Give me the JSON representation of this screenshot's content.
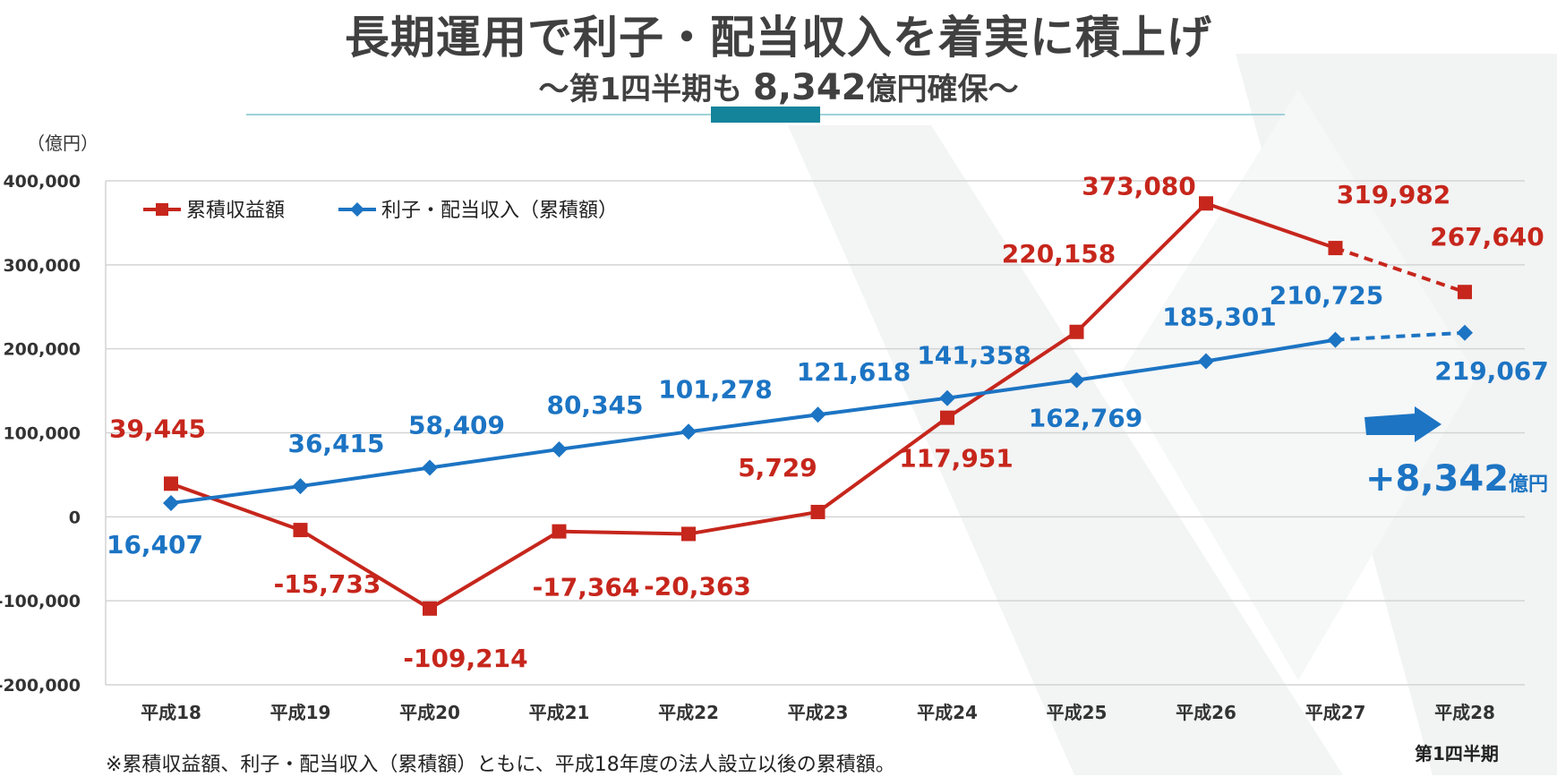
{
  "header": {
    "title": "長期運用で利子・配当収入を着実に積上げ",
    "subtitle_prefix": "～第1四半期も ",
    "subtitle_value": "8,342",
    "subtitle_suffix": "億円確保～"
  },
  "callout": {
    "value": "+8,342",
    "unit": "億円",
    "color": "#1c74c3"
  },
  "notes": {
    "footnote": "※累積収益額、利子・配当収入（累積額）ともに、平成18年度の法人設立以後の累積額。",
    "period": "第1四半期"
  },
  "chart_data": {
    "type": "line",
    "unit_label": "（億円）",
    "categories": [
      "平成18",
      "平成19",
      "平成20",
      "平成21",
      "平成22",
      "平成23",
      "平成24",
      "平成25",
      "平成26",
      "平成27",
      "平成28"
    ],
    "ylim": [
      -200000,
      400000
    ],
    "yticks": [
      400000,
      300000,
      200000,
      100000,
      0,
      -100000,
      -200000
    ],
    "ytick_labels": [
      "400,000",
      "300,000",
      "200,000",
      "100,000",
      "0",
      "-100,000",
      "-200,000"
    ],
    "grid": true,
    "legend_position": "top-left",
    "dashed_last_segment": true,
    "series": [
      {
        "name": "累積収益額",
        "color": "#c6261c",
        "marker": "square",
        "values": [
          39445,
          -15733,
          -109214,
          -17364,
          -20363,
          5729,
          117951,
          220158,
          373080,
          319982,
          267640
        ],
        "labels": [
          "39,445",
          "-15,733",
          "-109,214",
          "-17,364",
          "-20,363",
          "5,729",
          "117,951",
          "220,158",
          "373,080",
          "319,982",
          "267,640"
        ]
      },
      {
        "name": "利子・配当収入（累積額）",
        "color": "#1c74c3",
        "marker": "diamond",
        "values": [
          16407,
          36415,
          58409,
          80345,
          101278,
          121618,
          141358,
          162769,
          185301,
          210725,
          219067
        ],
        "labels": [
          "16,407",
          "36,415",
          "58,409",
          "80,345",
          "101,278",
          "121,618",
          "141,358",
          "162,769",
          "185,301",
          "210,725",
          "219,067"
        ]
      }
    ]
  }
}
